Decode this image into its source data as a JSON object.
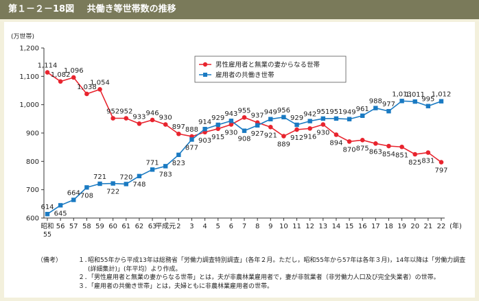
{
  "header": {
    "figure_number": "第１－２－18図",
    "title": "共働き等世帯数の推移"
  },
  "chart_data": {
    "type": "line",
    "y_unit_label": "(万世帯)",
    "ylim": [
      600,
      1200
    ],
    "yticks": [
      "600",
      "700",
      "800",
      "900",
      "1,000",
      "1,100",
      "1,200"
    ],
    "x_unit_label": "(年)",
    "categories": [
      "昭和55",
      "56",
      "57",
      "58",
      "59",
      "60",
      "61",
      "62",
      "63",
      "平成元",
      "2",
      "3",
      "4",
      "5",
      "6",
      "7",
      "8",
      "9",
      "10",
      "11",
      "12",
      "13",
      "14",
      "15",
      "16",
      "17",
      "18",
      "19",
      "20",
      "21",
      "22"
    ],
    "legend_position": "top-right",
    "series": [
      {
        "name": "男性雇用者と無業の妻からなる世帯",
        "color": "#e8242e",
        "marker": "circle",
        "values": [
          1114,
          1082,
          1096,
          1038,
          1054,
          952,
          952,
          933,
          946,
          930,
          897,
          888,
          903,
          915,
          930,
          955,
          937,
          921,
          889,
          912,
          916,
          930,
          894,
          870,
          875,
          863,
          854,
          851,
          825,
          831,
          797
        ],
        "labels": [
          "1,114",
          "1,082",
          "1,096",
          "1,038",
          "1,054",
          "952",
          "952",
          "933",
          "946",
          "930",
          "897",
          "888",
          "903",
          "915",
          "930",
          "955",
          "937",
          "921",
          "889",
          "912",
          "916",
          "930",
          "894",
          "870",
          "875",
          "863",
          "854",
          "851",
          "825",
          "831",
          "797"
        ]
      },
      {
        "name": "雇用者の共働き世帯",
        "color": "#1a7ac2",
        "marker": "square",
        "values": [
          614,
          645,
          664,
          708,
          721,
          722,
          720,
          748,
          771,
          783,
          823,
          877,
          914,
          929,
          943,
          908,
          927,
          949,
          956,
          929,
          942,
          951,
          951,
          949,
          961,
          988,
          977,
          1013,
          1011,
          995,
          1012
        ],
        "labels": [
          "614",
          "645",
          "664",
          "708",
          "721",
          "722",
          "720",
          "748",
          "771",
          "783",
          "823",
          "877",
          "914",
          "929",
          "943",
          "908",
          "927",
          "949",
          "956",
          "929",
          "942",
          "951",
          "951",
          "949",
          "961",
          "988",
          "977",
          "1,013",
          "1,011",
          "995",
          "1,012"
        ]
      }
    ]
  },
  "notes": {
    "label": "（備考）",
    "items": [
      {
        "num": "１．",
        "text": "昭和55年から平成13年は総務省「労働力調査特別調査」(各年２月。ただし，昭和55年から57年は各年３月)，14年以降は「労働力調査(詳細集計)」(年平均）より作成。"
      },
      {
        "num": "２．",
        "text": "「男性雇用者と無業の妻からなる世帯」とは，夫が非農林業雇用者で，妻が非就業者（非労働力人口及び完全失業者）の世帯。"
      },
      {
        "num": "３．",
        "text": "「雇用者の共働き世帯」とは，夫婦ともに非農林業雇用者の世帯。"
      }
    ]
  }
}
